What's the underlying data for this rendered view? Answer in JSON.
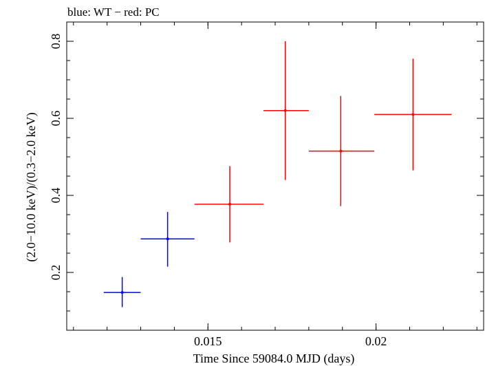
{
  "chart_data": {
    "type": "scatter",
    "title": "blue: WT − red: PC",
    "xlabel": "Time Since 59084.0 MJD (days)",
    "ylabel": "(2.0−10.0 keV)/(0.3−2.0 keV)",
    "xlim": [
      0.0108,
      0.0232
    ],
    "ylim": [
      0.05,
      0.85
    ],
    "x_ticks": [
      {
        "value": 0.015,
        "label": "0.015"
      },
      {
        "value": 0.02,
        "label": "0.02"
      }
    ],
    "y_ticks": [
      {
        "value": 0.2,
        "label": "0.2"
      },
      {
        "value": 0.4,
        "label": "0.4"
      },
      {
        "value": 0.6,
        "label": "0.6"
      },
      {
        "value": 0.8,
        "label": "0.8"
      }
    ],
    "x_minor_step": 0.001,
    "y_minor_step": 0.05,
    "grid": false,
    "series": [
      {
        "name": "WT",
        "color": "#0000ff",
        "points": [
          {
            "x": 0.01245,
            "y": 0.148,
            "x_low": 0.0119,
            "x_high": 0.013,
            "y_low": 0.11,
            "y_high": 0.188
          },
          {
            "x": 0.0138,
            "y": 0.287,
            "x_low": 0.013,
            "x_high": 0.0146,
            "y_low": 0.215,
            "y_high": 0.357
          }
        ]
      },
      {
        "name": "PC",
        "color": "#ff0000",
        "points": [
          {
            "x": 0.01565,
            "y": 0.377,
            "x_low": 0.0146,
            "x_high": 0.01665,
            "y_low": 0.278,
            "y_high": 0.476
          },
          {
            "x": 0.0173,
            "y": 0.62,
            "x_low": 0.01665,
            "x_high": 0.018,
            "y_low": 0.44,
            "y_high": 0.8
          },
          {
            "x": 0.01895,
            "y": 0.515,
            "x_low": 0.018,
            "x_high": 0.01995,
            "y_low": 0.372,
            "y_high": 0.658
          },
          {
            "x": 0.0211,
            "y": 0.61,
            "x_low": 0.01995,
            "x_high": 0.02225,
            "y_low": 0.465,
            "y_high": 0.755
          }
        ]
      }
    ]
  }
}
